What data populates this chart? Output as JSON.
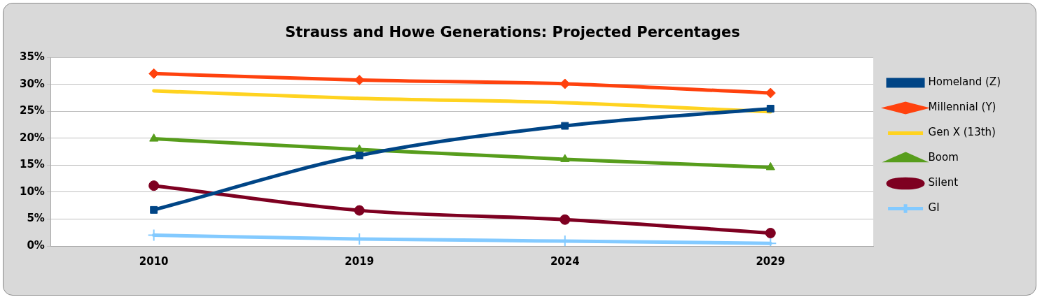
{
  "chart_data": {
    "type": "line",
    "title": "Strauss and Howe Generations: Projected Percentages",
    "categories": [
      "2010",
      "2019",
      "2024",
      "2029"
    ],
    "series": [
      {
        "name": "Homeland (Z)",
        "color": "#004586",
        "marker": "square",
        "values": [
          6.7,
          16.8,
          22.3,
          25.5
        ]
      },
      {
        "name": "Millennial (Y)",
        "color": "#ff420e",
        "marker": "diamond",
        "values": [
          32.0,
          30.8,
          30.1,
          28.4
        ]
      },
      {
        "name": "Gen X (13th)",
        "color": "#ffd320",
        "marker": "none",
        "values": [
          28.8,
          27.4,
          26.6,
          24.9
        ]
      },
      {
        "name": "Boom",
        "color": "#579d1c",
        "marker": "triangle",
        "values": [
          19.9,
          17.9,
          16.1,
          14.6
        ]
      },
      {
        "name": "Silent",
        "color": "#7e0021",
        "marker": "circle",
        "values": [
          11.2,
          6.6,
          4.9,
          2.4
        ]
      },
      {
        "name": "GI",
        "color": "#83caff",
        "marker": "cross",
        "values": [
          2.0,
          1.3,
          0.9,
          0.5
        ]
      }
    ],
    "ylim": [
      0,
      35
    ],
    "yticks": [
      {
        "value": 0,
        "label": "0%"
      },
      {
        "value": 5,
        "label": "5%"
      },
      {
        "value": 10,
        "label": "10%"
      },
      {
        "value": 15,
        "label": "15%"
      },
      {
        "value": 20,
        "label": "20%"
      },
      {
        "value": 25,
        "label": "25%"
      },
      {
        "value": 30,
        "label": "30%"
      },
      {
        "value": 35,
        "label": "35%"
      }
    ],
    "grid": "y",
    "legend": "right"
  }
}
